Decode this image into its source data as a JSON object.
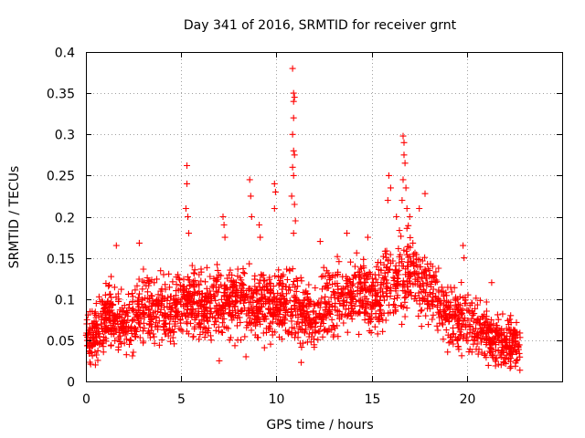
{
  "chart_data": {
    "type": "scatter",
    "title": "Day 341 of 2016, SRMTID for receiver grnt",
    "xlabel": "GPS time / hours",
    "ylabel": "SRMTID / TECUs",
    "xlim": [
      0,
      25
    ],
    "ylim": [
      0,
      0.4
    ],
    "xticks": [
      0,
      5,
      10,
      15,
      20
    ],
    "xtick_labels": [
      "0",
      "5",
      "10",
      "15",
      "20"
    ],
    "yticks": [
      0,
      0.05,
      0.1,
      0.15,
      0.2,
      0.25,
      0.3,
      0.35,
      0.4
    ],
    "ytick_labels": [
      "0",
      "0.05",
      "0.1",
      "0.15",
      "0.2",
      "0.25",
      "0.3",
      "0.35",
      "0.4"
    ],
    "grid": true,
    "marker": "+",
    "color": "#ff0000",
    "baseline_profile": [
      [
        0,
        0.055
      ],
      [
        0.5,
        0.06
      ],
      [
        1,
        0.075
      ],
      [
        1.5,
        0.08
      ],
      [
        2,
        0.07
      ],
      [
        2.5,
        0.075
      ],
      [
        3,
        0.09
      ],
      [
        3.5,
        0.09
      ],
      [
        4,
        0.085
      ],
      [
        4.5,
        0.08
      ],
      [
        5,
        0.09
      ],
      [
        5.5,
        0.1
      ],
      [
        6,
        0.09
      ],
      [
        7,
        0.095
      ],
      [
        8,
        0.1
      ],
      [
        9,
        0.095
      ],
      [
        10,
        0.09
      ],
      [
        10.5,
        0.1
      ],
      [
        11,
        0.09
      ],
      [
        11.5,
        0.075
      ],
      [
        12,
        0.08
      ],
      [
        13,
        0.1
      ],
      [
        14,
        0.11
      ],
      [
        15,
        0.1
      ],
      [
        16,
        0.12
      ],
      [
        17,
        0.13
      ],
      [
        18,
        0.11
      ],
      [
        19,
        0.08
      ],
      [
        20,
        0.075
      ],
      [
        21,
        0.06
      ],
      [
        22,
        0.045
      ],
      [
        22.8,
        0.045
      ]
    ],
    "x_extent": [
      0,
      22.8
    ],
    "highlights": [
      {
        "x": 5.3,
        "y": 0.262
      },
      {
        "x": 5.3,
        "y": 0.24
      },
      {
        "x": 5.25,
        "y": 0.21
      },
      {
        "x": 5.35,
        "y": 0.2
      },
      {
        "x": 5.4,
        "y": 0.18
      },
      {
        "x": 7.2,
        "y": 0.2
      },
      {
        "x": 7.25,
        "y": 0.19
      },
      {
        "x": 7.3,
        "y": 0.175
      },
      {
        "x": 8.6,
        "y": 0.245
      },
      {
        "x": 8.65,
        "y": 0.225
      },
      {
        "x": 8.7,
        "y": 0.2
      },
      {
        "x": 9.1,
        "y": 0.19
      },
      {
        "x": 9.15,
        "y": 0.175
      },
      {
        "x": 9.9,
        "y": 0.24
      },
      {
        "x": 9.95,
        "y": 0.23
      },
      {
        "x": 9.9,
        "y": 0.21
      },
      {
        "x": 10.85,
        "y": 0.38
      },
      {
        "x": 10.9,
        "y": 0.35
      },
      {
        "x": 10.95,
        "y": 0.345
      },
      {
        "x": 10.9,
        "y": 0.34
      },
      {
        "x": 10.9,
        "y": 0.32
      },
      {
        "x": 10.85,
        "y": 0.3
      },
      {
        "x": 10.9,
        "y": 0.28
      },
      {
        "x": 10.95,
        "y": 0.275
      },
      {
        "x": 10.85,
        "y": 0.26
      },
      {
        "x": 10.9,
        "y": 0.25
      },
      {
        "x": 10.8,
        "y": 0.225
      },
      {
        "x": 10.95,
        "y": 0.215
      },
      {
        "x": 11.0,
        "y": 0.195
      },
      {
        "x": 10.9,
        "y": 0.18
      },
      {
        "x": 16.65,
        "y": 0.298
      },
      {
        "x": 16.7,
        "y": 0.29
      },
      {
        "x": 16.7,
        "y": 0.275
      },
      {
        "x": 16.75,
        "y": 0.265
      },
      {
        "x": 16.65,
        "y": 0.245
      },
      {
        "x": 16.8,
        "y": 0.235
      },
      {
        "x": 16.6,
        "y": 0.22
      },
      {
        "x": 16.85,
        "y": 0.21
      },
      {
        "x": 15.9,
        "y": 0.25
      },
      {
        "x": 16.0,
        "y": 0.235
      },
      {
        "x": 15.85,
        "y": 0.22
      },
      {
        "x": 17.8,
        "y": 0.228
      },
      {
        "x": 17.5,
        "y": 0.21
      },
      {
        "x": 17.0,
        "y": 0.2
      },
      {
        "x": 16.3,
        "y": 0.2
      },
      {
        "x": 12.3,
        "y": 0.17
      },
      {
        "x": 13.7,
        "y": 0.18
      },
      {
        "x": 14.8,
        "y": 0.175
      },
      {
        "x": 2.8,
        "y": 0.168
      },
      {
        "x": 1.6,
        "y": 0.165
      },
      {
        "x": 19.8,
        "y": 0.165
      },
      {
        "x": 19.85,
        "y": 0.15
      },
      {
        "x": 21.3,
        "y": 0.12
      },
      {
        "x": 22.3,
        "y": 0.08
      },
      {
        "x": 22.6,
        "y": 0.025
      },
      {
        "x": 21.8,
        "y": 0.02
      },
      {
        "x": 11.3,
        "y": 0.023
      },
      {
        "x": 7.0,
        "y": 0.025
      },
      {
        "x": 8.4,
        "y": 0.03
      },
      {
        "x": 0.5,
        "y": 0.02
      }
    ]
  }
}
